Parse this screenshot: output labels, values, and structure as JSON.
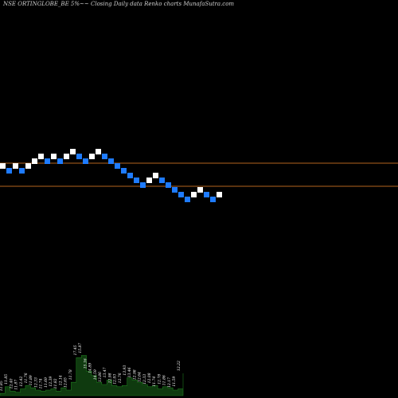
{
  "title": "NSE ORTINGLOBE_BE 5%~~ Closing Daily data  Renko  charts MunafaSutra.com",
  "colors": {
    "background": "#000000",
    "up_brick": "#ffffff",
    "down_brick": "#1e7bff",
    "ref_line": "#b4641e",
    "volume_fill": "#0f3a0f",
    "volume_edge": "#1e7a1e",
    "text": "#ffffff"
  },
  "chart_data": {
    "type": "renko",
    "title": "NSE ORTINGLOBE_BE 5%~~ Closing Daily data  Renko  charts MunafaSutra.com",
    "brick_percent": 5,
    "bricks": [
      {
        "dir": "up",
        "level": 0
      },
      {
        "dir": "down",
        "level": -1
      },
      {
        "dir": "up",
        "level": 0
      },
      {
        "dir": "down",
        "level": -1
      },
      {
        "dir": "up",
        "level": 0
      },
      {
        "dir": "up",
        "level": 1
      },
      {
        "dir": "up",
        "level": 2
      },
      {
        "dir": "down",
        "level": 1
      },
      {
        "dir": "up",
        "level": 2
      },
      {
        "dir": "down",
        "level": 1
      },
      {
        "dir": "up",
        "level": 2
      },
      {
        "dir": "up",
        "level": 3
      },
      {
        "dir": "down",
        "level": 2
      },
      {
        "dir": "down",
        "level": 1
      },
      {
        "dir": "up",
        "level": 2
      },
      {
        "dir": "up",
        "level": 3
      },
      {
        "dir": "down",
        "level": 2
      },
      {
        "dir": "down",
        "level": 1
      },
      {
        "dir": "down",
        "level": 0
      },
      {
        "dir": "down",
        "level": -1
      },
      {
        "dir": "down",
        "level": -2
      },
      {
        "dir": "down",
        "level": -3
      },
      {
        "dir": "down",
        "level": -4
      },
      {
        "dir": "up",
        "level": -3
      },
      {
        "dir": "up",
        "level": -2
      },
      {
        "dir": "down",
        "level": -3
      },
      {
        "dir": "down",
        "level": -4
      },
      {
        "dir": "down",
        "level": -5
      },
      {
        "dir": "down",
        "level": -6
      },
      {
        "dir": "down",
        "level": -7
      },
      {
        "dir": "up",
        "level": -6
      },
      {
        "dir": "up",
        "level": -5
      },
      {
        "dir": "down",
        "level": -6
      },
      {
        "dir": "down",
        "level": -7
      },
      {
        "dir": "up",
        "level": -6
      }
    ],
    "reference_lines": [
      {
        "level": 0
      },
      {
        "level": -4
      }
    ],
    "volume_labels": [
      "11.85",
      "11.85",
      "12.40",
      "11.87",
      "12.42",
      "11.76",
      "11.89",
      "12.33",
      "11.74",
      "11.69",
      "12.39",
      "11.82",
      "12.14",
      "12.65",
      "11.78",
      "17.45",
      "15.87",
      "15.16",
      "14.89",
      "14.59",
      "13.86",
      "13.47",
      "12.98",
      "12.93",
      "12.76",
      "13.93",
      "13.46",
      "12.98",
      "12.64",
      "12.33",
      "12.08",
      "11.74",
      "12.78",
      "11.86",
      "12.17",
      "11.59",
      "12.22"
    ],
    "volume_values": [
      2,
      8,
      4,
      3,
      6,
      9,
      7,
      5,
      4,
      5,
      6,
      4,
      7,
      5,
      12,
      34,
      36,
      22,
      18,
      12,
      10,
      14,
      9,
      8,
      9,
      16,
      14,
      12,
      10,
      8,
      9,
      6,
      8,
      7,
      5,
      6,
      20
    ]
  }
}
